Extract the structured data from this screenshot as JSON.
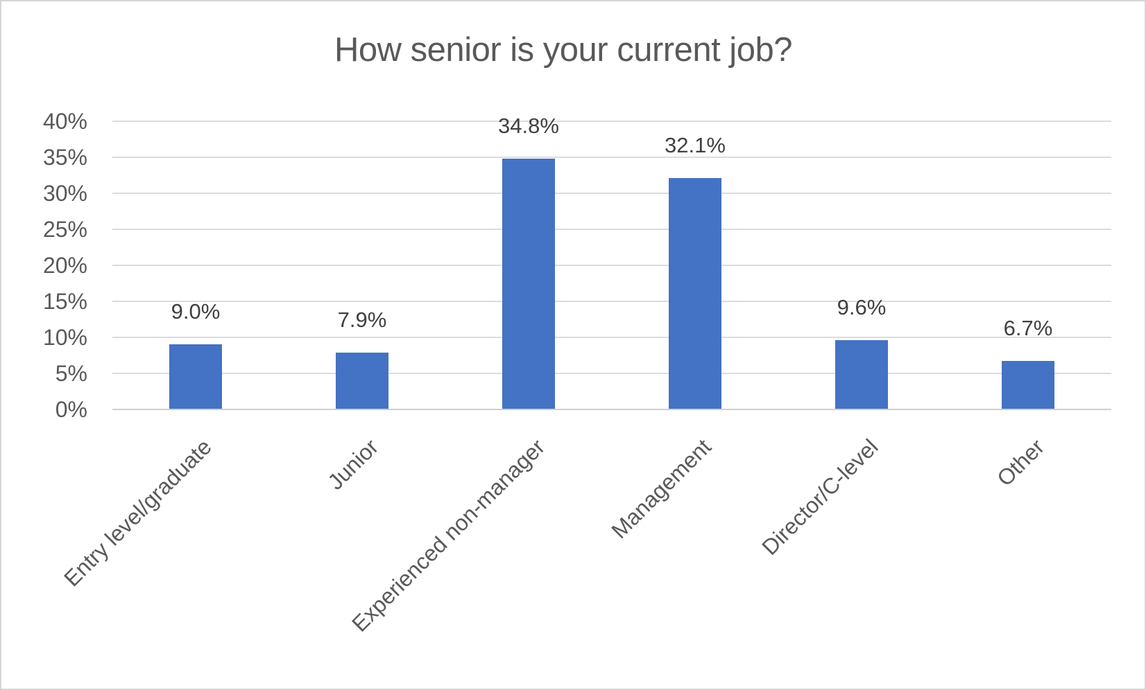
{
  "chart_data": {
    "type": "bar",
    "title": "How senior is your current job?",
    "categories": [
      "Entry level/graduate",
      "Junior",
      "Experienced non-manager",
      "Management",
      "Director/C-level",
      "Other"
    ],
    "values": [
      9.0,
      7.9,
      34.8,
      32.1,
      9.6,
      6.7
    ],
    "data_labels": [
      "9.0%",
      "7.9%",
      "34.8%",
      "32.1%",
      "9.6%",
      "6.7%"
    ],
    "xlabel": "",
    "ylabel": "",
    "ylim": [
      0,
      40
    ],
    "ytick_step": 5,
    "ytick_labels": [
      "0%",
      "5%",
      "10%",
      "15%",
      "20%",
      "25%",
      "30%",
      "35%",
      "40%"
    ],
    "grid": true,
    "legend_position": "none",
    "colors": {
      "bar": "#4472C4",
      "gridline": "#DCDCDC",
      "axis_line": "#CFCFCF",
      "title_text": "#595959",
      "axis_text": "#595959",
      "data_label_text": "#404040",
      "frame_border": "#D6D6D6",
      "background": "#FFFFFF"
    }
  }
}
